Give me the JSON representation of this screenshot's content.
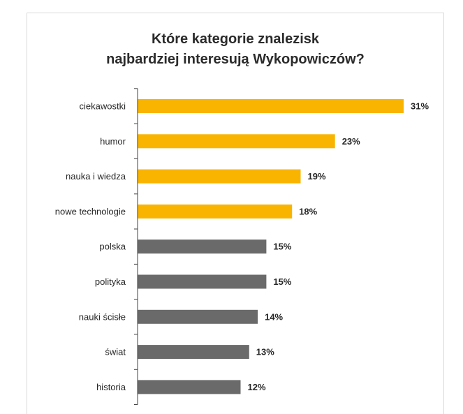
{
  "chart_data": {
    "type": "bar",
    "orientation": "horizontal",
    "title": "Które kategorie znalezisk najbardziej interesują Wykopowiczów?",
    "title_lines": [
      "Które kategorie znalezisk",
      "najbardziej interesują Wykopowiczów?"
    ],
    "categories": [
      "ciekawostki",
      "humor",
      "nauka i wiedza",
      "nowe technologie",
      "polska",
      "polityka",
      "nauki ścisłe",
      "świat",
      "historia"
    ],
    "values": [
      31,
      23,
      19,
      18,
      15,
      15,
      14,
      13,
      12
    ],
    "value_labels": [
      "31%",
      "23%",
      "19%",
      "18%",
      "15%",
      "15%",
      "14%",
      "13%",
      "12%"
    ],
    "bar_colors": [
      "#F9B400",
      "#F9B400",
      "#F9B400",
      "#F9B400",
      "#6A6A6A",
      "#6A6A6A",
      "#6A6A6A",
      "#6A6A6A",
      "#6A6A6A"
    ],
    "xlabel": "",
    "ylabel": "",
    "xlim": [
      0,
      31
    ],
    "grid": false,
    "legend": "none"
  },
  "colors": {
    "highlight": "#F9B400",
    "neutral": "#6A6A6A",
    "axis": "#404040",
    "frame": "#D9D9D9"
  }
}
